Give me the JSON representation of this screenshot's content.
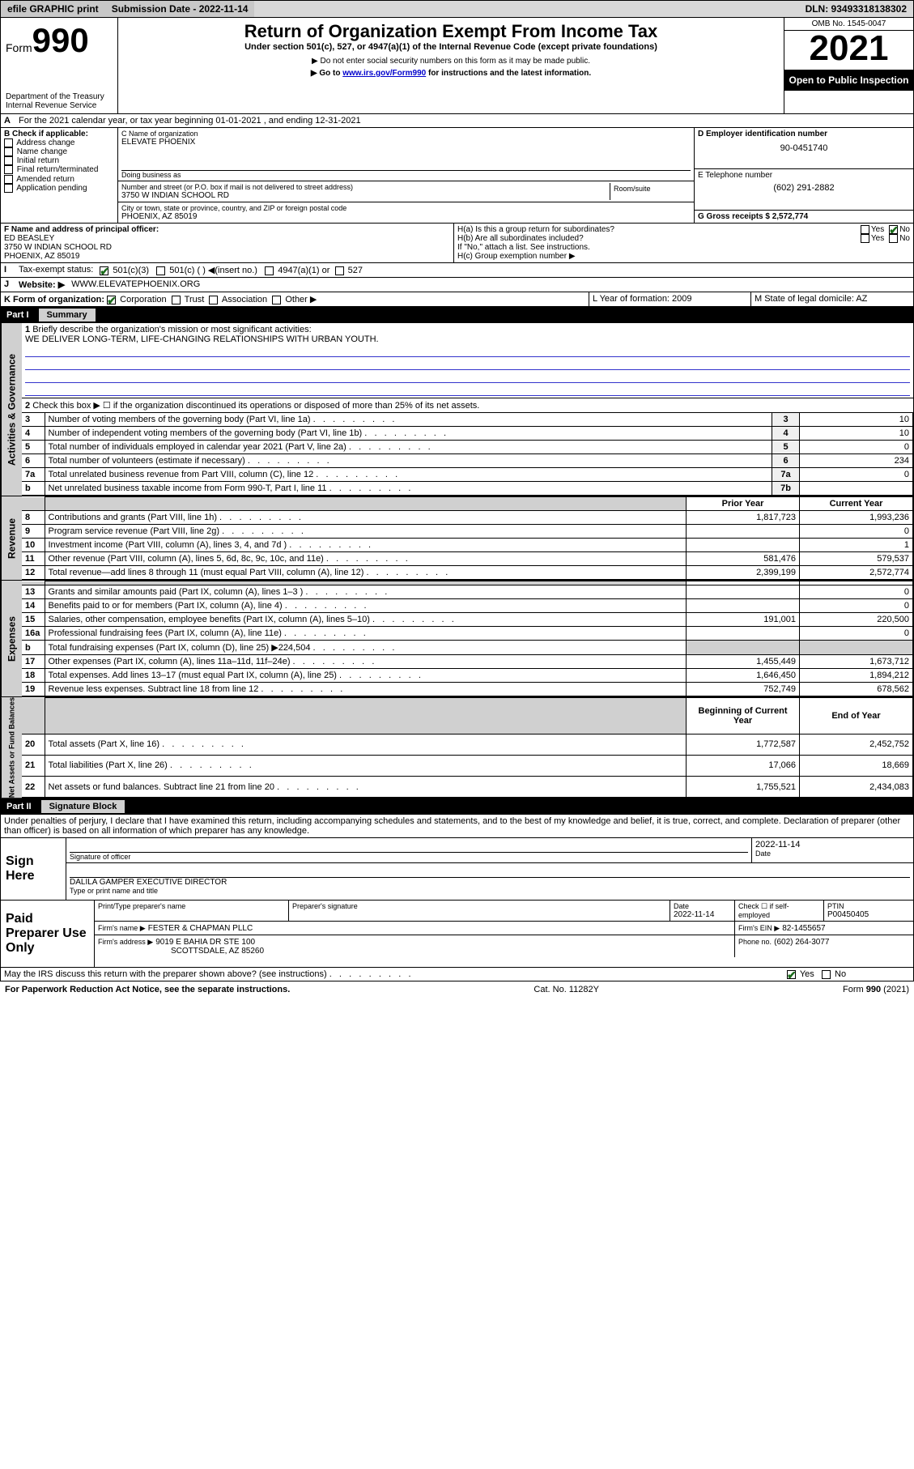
{
  "topbar": {
    "efile": "efile GRAPHIC print",
    "subdate_label": "Submission Date - 2022-11-14",
    "dln": "DLN: 93493318138302"
  },
  "header": {
    "form_prefix": "Form",
    "form_num": "990",
    "dept": "Department of the Treasury",
    "irs": "Internal Revenue Service",
    "title": "Return of Organization Exempt From Income Tax",
    "sub1": "Under section 501(c), 527, or 4947(a)(1) of the Internal Revenue Code (except private foundations)",
    "sub2": "▶ Do not enter social security numbers on this form as it may be made public.",
    "sub3_pre": "▶ Go to ",
    "sub3_link": "www.irs.gov/Form990",
    "sub3_post": " for instructions and the latest information.",
    "omb": "OMB No. 1545-0047",
    "year": "2021",
    "inspect": "Open to Public Inspection"
  },
  "A": {
    "text": "For the 2021 calendar year, or tax year beginning 01-01-2021   , and ending 12-31-2021"
  },
  "B": {
    "label": "B Check if applicable:",
    "opts": [
      "Address change",
      "Name change",
      "Initial return",
      "Final return/terminated",
      "Amended return",
      "Application pending"
    ]
  },
  "C": {
    "name_label": "C Name of organization",
    "name": "ELEVATE PHOENIX",
    "dba_label": "Doing business as",
    "addr_label": "Number and street (or P.O. box if mail is not delivered to street address)",
    "room_label": "Room/suite",
    "addr": "3750 W INDIAN SCHOOL RD",
    "city_label": "City or town, state or province, country, and ZIP or foreign postal code",
    "city": "PHOENIX, AZ  85019"
  },
  "D": {
    "label": "D Employer identification number",
    "val": "90-0451740"
  },
  "E": {
    "label": "E Telephone number",
    "val": "(602) 291-2882"
  },
  "G": {
    "label": "G Gross receipts $ 2,572,774"
  },
  "F": {
    "label": "F  Name and address of principal officer:",
    "name": "ED BEASLEY",
    "addr1": "3750 W INDIAN SCHOOL RD",
    "addr2": "PHOENIX, AZ  85019"
  },
  "H": {
    "a": "H(a)  Is this a group return for subordinates?",
    "b": "H(b)  Are all subordinates included?",
    "b_note": "If \"No,\" attach a list. See instructions.",
    "c": "H(c)  Group exemption number ▶",
    "yes": "Yes",
    "no": "No"
  },
  "I": {
    "label": "Tax-exempt status:",
    "o1": "501(c)(3)",
    "o2": "501(c) (  ) ◀(insert no.)",
    "o3": "4947(a)(1) or",
    "o4": "527"
  },
  "J": {
    "label": "Website: ▶",
    "val": "WWW.ELEVATEPHOENIX.ORG"
  },
  "K": {
    "label": "K Form of organization:",
    "o1": "Corporation",
    "o2": "Trust",
    "o3": "Association",
    "o4": "Other ▶"
  },
  "L": {
    "label": "L Year of formation: 2009"
  },
  "M": {
    "label": "M State of legal domicile: AZ"
  },
  "partI": {
    "title": "Part I",
    "name": "Summary",
    "l1": "Briefly describe the organization's mission or most significant activities:",
    "l1v": "WE DELIVER LONG-TERM, LIFE-CHANGING RELATIONSHIPS WITH URBAN YOUTH.",
    "l2": "Check this box ▶ ☐  if the organization discontinued its operations or disposed of more than 25% of its net assets.",
    "rows_gov": [
      {
        "n": "3",
        "t": "Number of voting members of the governing body (Part VI, line 1a)",
        "ln": "3",
        "v": "10"
      },
      {
        "n": "4",
        "t": "Number of independent voting members of the governing body (Part VI, line 1b)",
        "ln": "4",
        "v": "10"
      },
      {
        "n": "5",
        "t": "Total number of individuals employed in calendar year 2021 (Part V, line 2a)",
        "ln": "5",
        "v": "0"
      },
      {
        "n": "6",
        "t": "Total number of volunteers (estimate if necessary)",
        "ln": "6",
        "v": "234"
      },
      {
        "n": "7a",
        "t": "Total unrelated business revenue from Part VIII, column (C), line 12",
        "ln": "7a",
        "v": "0"
      },
      {
        "n": "b",
        "t": "Net unrelated business taxable income from Form 990-T, Part I, line 11",
        "ln": "7b",
        "v": ""
      }
    ],
    "col_prior": "Prior Year",
    "col_current": "Current Year",
    "rows_rev": [
      {
        "n": "8",
        "t": "Contributions and grants (Part VIII, line 1h)",
        "p": "1,817,723",
        "c": "1,993,236"
      },
      {
        "n": "9",
        "t": "Program service revenue (Part VIII, line 2g)",
        "p": "",
        "c": "0"
      },
      {
        "n": "10",
        "t": "Investment income (Part VIII, column (A), lines 3, 4, and 7d )",
        "p": "",
        "c": "1"
      },
      {
        "n": "11",
        "t": "Other revenue (Part VIII, column (A), lines 5, 6d, 8c, 9c, 10c, and 11e)",
        "p": "581,476",
        "c": "579,537"
      },
      {
        "n": "12",
        "t": "Total revenue—add lines 8 through 11 (must equal Part VIII, column (A), line 12)",
        "p": "2,399,199",
        "c": "2,572,774"
      }
    ],
    "rows_exp": [
      {
        "n": "13",
        "t": "Grants and similar amounts paid (Part IX, column (A), lines 1–3 )",
        "p": "",
        "c": "0"
      },
      {
        "n": "14",
        "t": "Benefits paid to or for members (Part IX, column (A), line 4)",
        "p": "",
        "c": "0"
      },
      {
        "n": "15",
        "t": "Salaries, other compensation, employee benefits (Part IX, column (A), lines 5–10)",
        "p": "191,001",
        "c": "220,500"
      },
      {
        "n": "16a",
        "t": "Professional fundraising fees (Part IX, column (A), line 11e)",
        "p": "",
        "c": "0"
      },
      {
        "n": "b",
        "t": "Total fundraising expenses (Part IX, column (D), line 25) ▶224,504",
        "p": "shade",
        "c": "shade"
      },
      {
        "n": "17",
        "t": "Other expenses (Part IX, column (A), lines 11a–11d, 11f–24e)",
        "p": "1,455,449",
        "c": "1,673,712"
      },
      {
        "n": "18",
        "t": "Total expenses. Add lines 13–17 (must equal Part IX, column (A), line 25)",
        "p": "1,646,450",
        "c": "1,894,212"
      },
      {
        "n": "19",
        "t": "Revenue less expenses. Subtract line 18 from line 12",
        "p": "752,749",
        "c": "678,562"
      }
    ],
    "col_begin": "Beginning of Current Year",
    "col_end": "End of Year",
    "rows_net": [
      {
        "n": "20",
        "t": "Total assets (Part X, line 16)",
        "p": "1,772,587",
        "c": "2,452,752"
      },
      {
        "n": "21",
        "t": "Total liabilities (Part X, line 26)",
        "p": "17,066",
        "c": "18,669"
      },
      {
        "n": "22",
        "t": "Net assets or fund balances. Subtract line 21 from line 20",
        "p": "1,755,521",
        "c": "2,434,083"
      }
    ]
  },
  "partII": {
    "title": "Part II",
    "name": "Signature Block",
    "decl": "Under penalties of perjury, I declare that I have examined this return, including accompanying schedules and statements, and to the best of my knowledge and belief, it is true, correct, and complete. Declaration of preparer (other than officer) is based on all information of which preparer has any knowledge.",
    "sign_here": "Sign Here",
    "sig_officer": "Signature of officer",
    "date": "Date",
    "date_val": "2022-11-14",
    "officer": "DALILA GAMPER  EXECUTIVE DIRECTOR",
    "type_name": "Type or print name and title",
    "paid": "Paid Preparer Use Only",
    "p_name_label": "Print/Type preparer's name",
    "p_sig_label": "Preparer's signature",
    "p_date_label": "Date",
    "p_date": "2022-11-14",
    "p_check": "Check ☐ if self-employed",
    "ptin_label": "PTIN",
    "ptin": "P00450405",
    "firm_name_label": "Firm's name    ▶",
    "firm_name": "FESTER & CHAPMAN PLLC",
    "firm_ein_label": "Firm's EIN ▶",
    "firm_ein": "82-1455657",
    "firm_addr_label": "Firm's address ▶",
    "firm_addr1": "9019 E BAHIA DR STE 100",
    "firm_addr2": "SCOTTSDALE, AZ  85260",
    "phone_label": "Phone no.",
    "phone": "(602) 264-3077",
    "discuss": "May the IRS discuss this return with the preparer shown above? (see instructions)",
    "yes": "Yes",
    "no": "No"
  },
  "footer": {
    "left": "For Paperwork Reduction Act Notice, see the separate instructions.",
    "mid": "Cat. No. 11282Y",
    "right": "Form 990 (2021)"
  },
  "colors": {
    "link": "#2424b0",
    "shade": "#d0d0d0",
    "check": "#1a6b1a"
  }
}
